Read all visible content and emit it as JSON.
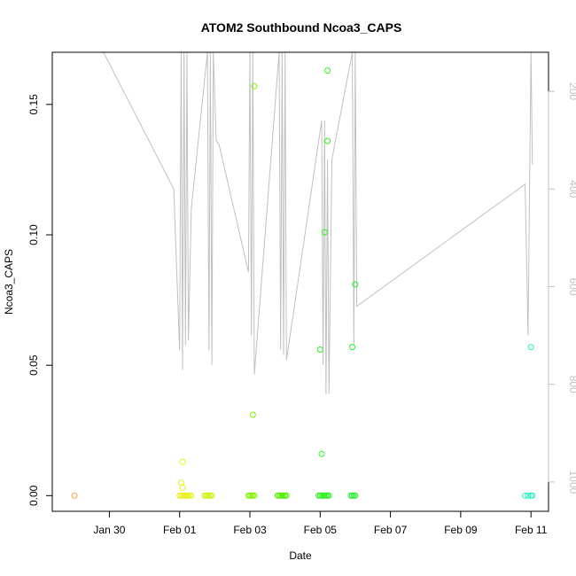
{
  "chart_data": {
    "type": "scatter",
    "title": "ATOM2 Southbound Ncoa3_CAPS",
    "xlabel": "Date",
    "ylabel": "Ncoa3_CAPS",
    "xlim": [
      "2023-01-28T09:00",
      "2023-02-11T12:00"
    ],
    "ylim": [
      -0.006,
      0.17
    ],
    "x_ticks": [
      {
        "date": "2023-01-30T00:00",
        "label": "Jan 30"
      },
      {
        "date": "2023-02-01T00:00",
        "label": "Feb 01"
      },
      {
        "date": "2023-02-03T00:00",
        "label": "Feb 03"
      },
      {
        "date": "2023-02-05T00:00",
        "label": "Feb 05"
      },
      {
        "date": "2023-02-07T00:00",
        "label": "Feb 07"
      },
      {
        "date": "2023-02-09T00:00",
        "label": "Feb 09"
      },
      {
        "date": "2023-02-11T00:00",
        "label": "Feb 11"
      }
    ],
    "y_ticks": [
      {
        "value": 0.0,
        "label": "0.00"
      },
      {
        "value": 0.05,
        "label": "0.05"
      },
      {
        "value": 0.1,
        "label": "0.10"
      },
      {
        "value": 0.15,
        "label": "0.15"
      }
    ],
    "depth_axis": {
      "side": "right",
      "range": [
        120,
        1060
      ],
      "reversed": true,
      "color": "#c0c0c0",
      "ticks": [
        {
          "value": 200,
          "label": "200"
        },
        {
          "value": 400,
          "label": "400"
        },
        {
          "value": 600,
          "label": "600"
        },
        {
          "value": 800,
          "label": "800"
        },
        {
          "value": 1000,
          "label": "1000"
        }
      ]
    },
    "points": [
      {
        "date": "2023-01-29T00:10",
        "value": 0.0,
        "color": "#f5a040"
      },
      {
        "date": "2023-02-01T00:00",
        "value": 0.0,
        "color": "#e8f020"
      },
      {
        "date": "2023-02-01T01:00",
        "value": 0.0,
        "color": "#e8f020"
      },
      {
        "date": "2023-02-01T02:00",
        "value": 0.0,
        "color": "#e8f020"
      },
      {
        "date": "2023-02-01T03:00",
        "value": 0.0,
        "color": "#e8f020"
      },
      {
        "date": "2023-02-01T04:00",
        "value": 0.0,
        "color": "#e8f020"
      },
      {
        "date": "2023-02-01T05:00",
        "value": 0.0,
        "color": "#e8f020"
      },
      {
        "date": "2023-02-01T06:00",
        "value": 0.0,
        "color": "#e8f020"
      },
      {
        "date": "2023-02-01T07:00",
        "value": 0.0,
        "color": "#e8f020"
      },
      {
        "date": "2023-02-01T08:00",
        "value": 0.0,
        "color": "#e8f020"
      },
      {
        "date": "2023-02-01T02:00",
        "value": 0.013,
        "color": "#e8f020"
      },
      {
        "date": "2023-02-01T01:00",
        "value": 0.005,
        "color": "#e8f020"
      },
      {
        "date": "2023-02-01T02:00",
        "value": 0.003,
        "color": "#e8f020"
      },
      {
        "date": "2023-02-01T17:00",
        "value": 0.0,
        "color": "#d0f010"
      },
      {
        "date": "2023-02-01T18:00",
        "value": 0.0,
        "color": "#d0f010"
      },
      {
        "date": "2023-02-01T19:00",
        "value": 0.0,
        "color": "#d0f010"
      },
      {
        "date": "2023-02-01T20:00",
        "value": 0.0,
        "color": "#d0f010"
      },
      {
        "date": "2023-02-01T21:00",
        "value": 0.0,
        "color": "#d0f010"
      },
      {
        "date": "2023-02-01T22:00",
        "value": 0.0,
        "color": "#d0f010"
      },
      {
        "date": "2023-02-02T23:00",
        "value": 0.0,
        "color": "#80f000"
      },
      {
        "date": "2023-02-03T00:00",
        "value": 0.0,
        "color": "#80f000"
      },
      {
        "date": "2023-02-03T01:00",
        "value": 0.0,
        "color": "#80f000"
      },
      {
        "date": "2023-02-03T02:00",
        "value": 0.0,
        "color": "#80f000"
      },
      {
        "date": "2023-02-03T03:00",
        "value": 0.0,
        "color": "#80f000"
      },
      {
        "date": "2023-02-03T02:00",
        "value": 0.031,
        "color": "#80f000"
      },
      {
        "date": "2023-02-03T03:00",
        "value": 0.157,
        "color": "#80f000"
      },
      {
        "date": "2023-02-03T19:00",
        "value": 0.0,
        "color": "#50f000"
      },
      {
        "date": "2023-02-03T20:00",
        "value": 0.0,
        "color": "#50f000"
      },
      {
        "date": "2023-02-03T21:00",
        "value": 0.0,
        "color": "#50f000"
      },
      {
        "date": "2023-02-03T22:00",
        "value": 0.0,
        "color": "#50f000"
      },
      {
        "date": "2023-02-03T23:00",
        "value": 0.0,
        "color": "#50f000"
      },
      {
        "date": "2023-02-04T00:00",
        "value": 0.0,
        "color": "#50f000"
      },
      {
        "date": "2023-02-04T01:00",
        "value": 0.0,
        "color": "#50f000"
      },
      {
        "date": "2023-02-04T23:00",
        "value": 0.0,
        "color": "#30f020"
      },
      {
        "date": "2023-02-05T00:00",
        "value": 0.0,
        "color": "#30f020"
      },
      {
        "date": "2023-02-05T01:00",
        "value": 0.0,
        "color": "#30f020"
      },
      {
        "date": "2023-02-05T02:00",
        "value": 0.0,
        "color": "#30f020"
      },
      {
        "date": "2023-02-05T03:00",
        "value": 0.0,
        "color": "#30f020"
      },
      {
        "date": "2023-02-05T04:00",
        "value": 0.0,
        "color": "#30f020"
      },
      {
        "date": "2023-02-05T05:00",
        "value": 0.0,
        "color": "#30f020"
      },
      {
        "date": "2023-02-05T06:00",
        "value": 0.0,
        "color": "#30f020"
      },
      {
        "date": "2023-02-05T01:00",
        "value": 0.016,
        "color": "#30f020"
      },
      {
        "date": "2023-02-05T00:00",
        "value": 0.056,
        "color": "#30f020"
      },
      {
        "date": "2023-02-05T03:00",
        "value": 0.101,
        "color": "#30f020"
      },
      {
        "date": "2023-02-05T05:00",
        "value": 0.136,
        "color": "#30f020"
      },
      {
        "date": "2023-02-05T05:00",
        "value": 0.163,
        "color": "#30f020"
      },
      {
        "date": "2023-02-05T21:00",
        "value": 0.0,
        "color": "#20f030"
      },
      {
        "date": "2023-02-05T22:00",
        "value": 0.0,
        "color": "#20f030"
      },
      {
        "date": "2023-02-05T23:00",
        "value": 0.0,
        "color": "#20f030"
      },
      {
        "date": "2023-02-06T00:00",
        "value": 0.0,
        "color": "#20f030"
      },
      {
        "date": "2023-02-05T22:00",
        "value": 0.057,
        "color": "#20f030"
      },
      {
        "date": "2023-02-06T00:00",
        "value": 0.081,
        "color": "#20f030"
      },
      {
        "date": "2023-02-10T20:00",
        "value": 0.0,
        "color": "#20f0c0"
      },
      {
        "date": "2023-02-10T22:00",
        "value": 0.0,
        "color": "#20f0c0"
      },
      {
        "date": "2023-02-11T00:00",
        "value": 0.0,
        "color": "#20f0c0"
      },
      {
        "date": "2023-02-11T01:00",
        "value": 0.0,
        "color": "#20f0c0"
      },
      {
        "date": "2023-02-11T00:00",
        "value": 0.057,
        "color": "#20f0c0"
      }
    ],
    "depth_track": {
      "color": "#c0c0c0",
      "points": [
        [
          "2023-01-29T20:00",
          120
        ],
        [
          "2023-01-31T20:00",
          400
        ],
        [
          "2023-02-01T00:00",
          730
        ],
        [
          "2023-02-01T01:00",
          120
        ],
        [
          "2023-02-01T02:00",
          770
        ],
        [
          "2023-02-01T03:00",
          120
        ],
        [
          "2023-02-01T04:00",
          720
        ],
        [
          "2023-02-01T05:00",
          120
        ],
        [
          "2023-02-01T06:00",
          710
        ],
        [
          "2023-02-01T08:00",
          440
        ],
        [
          "2023-02-01T19:00",
          120
        ],
        [
          "2023-02-01T20:00",
          730
        ],
        [
          "2023-02-01T21:00",
          120
        ],
        [
          "2023-02-01T22:00",
          760
        ],
        [
          "2023-02-01T23:00",
          120
        ],
        [
          "2023-02-02T01:00",
          300
        ],
        [
          "2023-02-02T03:00",
          310
        ],
        [
          "2023-02-02T23:00",
          570
        ],
        [
          "2023-02-03T00:00",
          120
        ],
        [
          "2023-02-03T01:00",
          700
        ],
        [
          "2023-02-03T02:00",
          120
        ],
        [
          "2023-02-03T03:00",
          780
        ],
        [
          "2023-02-03T20:00",
          120
        ],
        [
          "2023-02-03T21:00",
          730
        ],
        [
          "2023-02-03T22:00",
          120
        ],
        [
          "2023-02-03T23:00",
          740
        ],
        [
          "2023-02-04T00:00",
          120
        ],
        [
          "2023-02-04T01:00",
          750
        ],
        [
          "2023-02-05T01:00",
          260
        ],
        [
          "2023-02-05T02:00",
          760
        ],
        [
          "2023-02-05T03:00",
          260
        ],
        [
          "2023-02-05T04:00",
          820
        ],
        [
          "2023-02-05T05:00",
          340
        ],
        [
          "2023-02-05T06:00",
          820
        ],
        [
          "2023-02-05T08:00",
          340
        ],
        [
          "2023-02-05T22:00",
          120
        ],
        [
          "2023-02-05T23:00",
          720
        ],
        [
          "2023-02-06T00:00",
          120
        ],
        [
          "2023-02-06T01:00",
          640
        ],
        [
          "2023-02-10T20:00",
          390
        ],
        [
          "2023-02-10T22:00",
          700
        ],
        [
          "2023-02-11T00:00",
          120
        ],
        [
          "2023-02-11T01:00",
          350
        ]
      ]
    },
    "grid": false,
    "legend": "none"
  }
}
